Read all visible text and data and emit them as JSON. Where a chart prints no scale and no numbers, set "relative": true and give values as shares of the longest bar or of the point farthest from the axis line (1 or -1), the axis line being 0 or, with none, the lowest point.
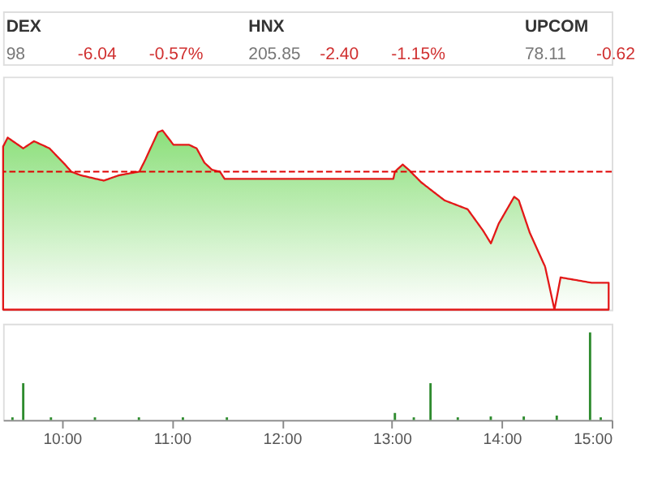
{
  "chart_data": [
    {
      "type": "other",
      "annotations": [
        "DEX",
        "98",
        "-6.04",
        "-0.57%",
        "HNX",
        "205.85",
        "-2.40",
        "-1.15%",
        "UPCOM",
        "78.11",
        "-0.62"
      ]
    },
    {
      "type": "area",
      "relative": true,
      "xlim": [
        9.465,
        15.0
      ],
      "tick_labels": false,
      "line_style": "solid",
      "series": [
        {
          "color": "#e00000",
          "x": [
            9.465,
            9.507,
            9.648,
            9.746,
            9.887,
            10.028,
            10.085,
            10.169,
            10.38,
            10.521,
            10.704,
            10.761,
            10.873,
            10.915,
            11.014,
            11.155,
            11.225,
            11.296,
            11.366,
            11.437,
            11.479,
            11.577,
            12.282,
            13.014,
            13.028,
            13.099,
            13.155,
            13.268,
            13.479,
            13.69,
            13.831,
            13.901,
            13.972,
            14.113,
            14.155,
            14.254,
            14.394,
            14.479,
            14.535,
            14.817,
            14.972
          ],
          "values": [
            0.91,
            0.96,
            0.9,
            0.94,
            0.9,
            0.81,
            0.77,
            0.75,
            0.72,
            0.75,
            0.77,
            0.84,
            0.99,
            1,
            0.92,
            0.92,
            0.9,
            0.82,
            0.78,
            0.77,
            0.73,
            0.73,
            0.73,
            0.73,
            0.77,
            0.81,
            0.78,
            0.71,
            0.61,
            0.56,
            0.44,
            0.37,
            0.48,
            0.63,
            0.61,
            0.43,
            0.24,
            0,
            0.18,
            0.15,
            0.15
          ]
        }
      ],
      "ref_lines": [
        {
          "axis": "y",
          "value": 0.77,
          "color": "#e00000",
          "line_style": "dashed"
        }
      ]
    },
    {
      "type": "bar",
      "relative": true,
      "xlim": [
        9.465,
        15.0
      ],
      "tick_labels": "x",
      "xticks": [
        {
          "value": 10,
          "label": "10:00"
        },
        {
          "value": 11,
          "label": "11:00"
        },
        {
          "value": 12,
          "label": "12:00"
        },
        {
          "value": 13,
          "label": "13:00"
        },
        {
          "value": 14,
          "label": "14:00"
        },
        {
          "value": 15,
          "label": "15:00"
        }
      ],
      "series": [
        {
          "color": "#2e8b2e",
          "x": [
            9.55,
            9.648,
            9.9,
            10.3,
            10.7,
            11.1,
            11.5,
            13.028,
            13.2,
            13.352,
            13.6,
            13.9,
            14.2,
            14.5,
            14.803,
            14.9
          ],
          "values": [
            0.03,
            0.42,
            0.03,
            0.03,
            0.03,
            0.03,
            0.03,
            0.08,
            0.03,
            0.42,
            0.03,
            0.04,
            0.04,
            0.05,
            1,
            0.03
          ]
        }
      ]
    }
  ]
}
